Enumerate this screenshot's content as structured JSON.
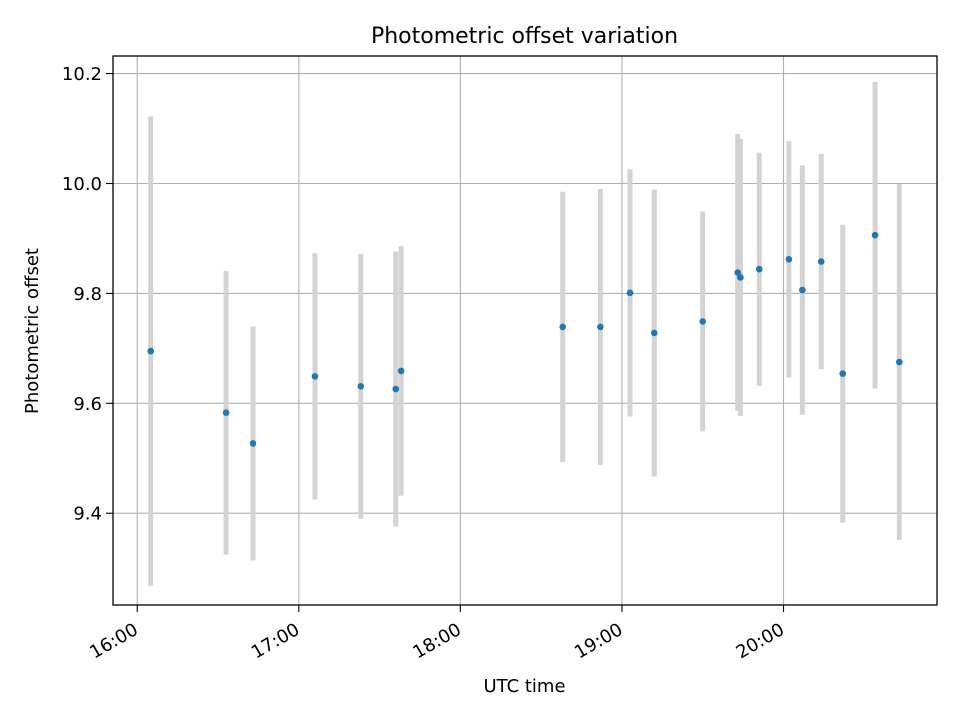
{
  "chart_data": {
    "type": "scatter",
    "title": "Photometric offset variation",
    "xlabel": "UTC time",
    "ylabel": "Photometric offset",
    "x_tick_labels": [
      "16:00",
      "17:00",
      "18:00",
      "19:00",
      "20:00"
    ],
    "y_tick_labels": [
      "9.4",
      "9.6",
      "9.8",
      "10.0",
      "10.2"
    ],
    "xlim": [
      "15:51",
      "20:57"
    ],
    "ylim": [
      9.233,
      10.232
    ],
    "grid": true,
    "colors": {
      "point": "#1f77b4",
      "errorbar": "#d3d3d3",
      "grid": "#b0b0b0"
    },
    "points": [
      {
        "x": "16:05",
        "y": 9.695,
        "err": 0.427
      },
      {
        "x": "16:33",
        "y": 9.583,
        "err": 0.258
      },
      {
        "x": "16:43",
        "y": 9.527,
        "err": 0.213
      },
      {
        "x": "17:06",
        "y": 9.649,
        "err": 0.224
      },
      {
        "x": "17:23",
        "y": 9.631,
        "err": 0.241
      },
      {
        "x": "17:36",
        "y": 9.626,
        "err": 0.25
      },
      {
        "x": "17:38",
        "y": 9.659,
        "err": 0.227
      },
      {
        "x": "18:38",
        "y": 9.739,
        "err": 0.246
      },
      {
        "x": "18:52",
        "y": 9.739,
        "err": 0.251
      },
      {
        "x": "19:03",
        "y": 9.801,
        "err": 0.225
      },
      {
        "x": "19:12",
        "y": 9.728,
        "err": 0.261
      },
      {
        "x": "19:30",
        "y": 9.749,
        "err": 0.2
      },
      {
        "x": "19:43",
        "y": 9.838,
        "err": 0.252
      },
      {
        "x": "19:44",
        "y": 9.829,
        "err": 0.252
      },
      {
        "x": "19:51",
        "y": 9.844,
        "err": 0.212
      },
      {
        "x": "20:02",
        "y": 9.862,
        "err": 0.215
      },
      {
        "x": "20:07",
        "y": 9.806,
        "err": 0.227
      },
      {
        "x": "20:14",
        "y": 9.858,
        "err": 0.196
      },
      {
        "x": "20:22",
        "y": 9.654,
        "err": 0.271
      },
      {
        "x": "20:34",
        "y": 9.906,
        "err": 0.279
      },
      {
        "x": "20:43",
        "y": 9.675,
        "err": 0.324
      }
    ]
  }
}
